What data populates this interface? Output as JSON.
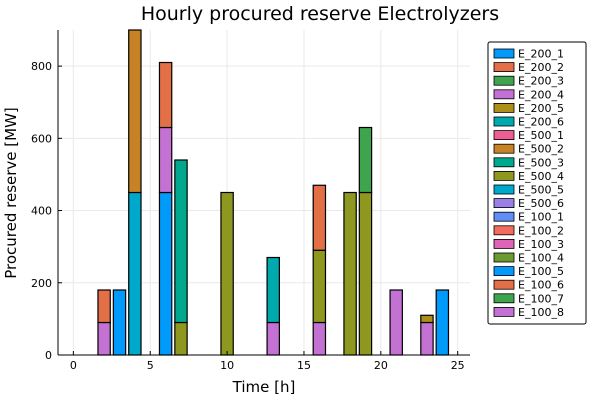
{
  "chart_data": {
    "type": "bar",
    "stacked": true,
    "title": "Hourly procured reserve Electrolyzers",
    "xlabel": "Time [h]",
    "ylabel": "Procured reserve [MW]",
    "xlim": [
      -1,
      25.8
    ],
    "ylim": [
      0,
      900
    ],
    "xticks": [
      0,
      5,
      10,
      15,
      20,
      25
    ],
    "yticks": [
      0,
      200,
      400,
      600,
      800
    ],
    "grid": true,
    "legend_position": "outer-right",
    "series": [
      {
        "name": "E_200_1",
        "color": "#009AFA",
        "points": []
      },
      {
        "name": "E_200_2",
        "color": "#E36F47",
        "points": []
      },
      {
        "name": "E_200_3",
        "color": "#3EA44E",
        "points": []
      },
      {
        "name": "E_200_4",
        "color": "#C371D2",
        "points": []
      },
      {
        "name": "E_200_5",
        "color": "#AC8E18",
        "points": []
      },
      {
        "name": "E_200_6",
        "color": "#00A9AD",
        "points": []
      },
      {
        "name": "E_500_1",
        "color": "#ED5E93",
        "points": []
      },
      {
        "name": "E_500_2",
        "color": "#C68225",
        "points": []
      },
      {
        "name": "E_500_3",
        "color": "#00A98D",
        "points": []
      },
      {
        "name": "E_500_4",
        "color": "#8E971E",
        "points": []
      },
      {
        "name": "E_500_5",
        "color": "#00A8CB",
        "points": []
      },
      {
        "name": "E_500_6",
        "color": "#9B7FE9",
        "points": []
      },
      {
        "name": "E_100_1",
        "color": "#618DF6",
        "points": []
      },
      {
        "name": "E_100_2",
        "color": "#F16C5F",
        "points": []
      },
      {
        "name": "E_100_3",
        "color": "#DD64B6",
        "points": []
      },
      {
        "name": "E_100_4",
        "color": "#6B9A32",
        "points": []
      },
      {
        "name": "E_100_5",
        "color": "#009AFA",
        "points": []
      },
      {
        "name": "E_100_6",
        "color": "#E36F47",
        "points": []
      },
      {
        "name": "E_100_7",
        "color": "#3EA44E",
        "points": []
      },
      {
        "name": "E_100_8",
        "color": "#C371D2",
        "points": []
      }
    ],
    "bars": [
      {
        "x": 2,
        "segments": [
          {
            "series": "E_100_8",
            "value": 90
          },
          {
            "series": "E_100_6",
            "value": 90
          }
        ]
      },
      {
        "x": 3,
        "segments": [
          {
            "series": "E_100_5",
            "value": 180
          }
        ]
      },
      {
        "x": 4,
        "segments": [
          {
            "series": "E_500_5",
            "value": 450
          },
          {
            "series": "E_500_2",
            "value": 450
          }
        ]
      },
      {
        "x": 6,
        "segments": [
          {
            "series": "E_100_5",
            "value": 450
          },
          {
            "series": "E_100_8",
            "value": 180
          },
          {
            "series": "E_100_6",
            "value": 180
          }
        ]
      },
      {
        "x": 7,
        "segments": [
          {
            "series": "E_500_4",
            "value": 90
          },
          {
            "series": "E_500_3",
            "value": 450
          }
        ]
      },
      {
        "x": 10,
        "segments": [
          {
            "series": "E_500_4",
            "value": 450
          }
        ]
      },
      {
        "x": 13,
        "segments": [
          {
            "series": "E_100_8",
            "value": 90
          },
          {
            "series": "E_200_6",
            "value": 180
          }
        ]
      },
      {
        "x": 16,
        "segments": [
          {
            "series": "E_100_8",
            "value": 90
          },
          {
            "series": "E_500_4",
            "value": 200
          },
          {
            "series": "E_100_6",
            "value": 180
          }
        ]
      },
      {
        "x": 18,
        "segments": [
          {
            "series": "E_500_4",
            "value": 450
          }
        ]
      },
      {
        "x": 19,
        "segments": [
          {
            "series": "E_500_4",
            "value": 450
          },
          {
            "series": "E_100_7",
            "value": 180
          }
        ]
      },
      {
        "x": 21,
        "segments": [
          {
            "series": "E_100_8",
            "value": 180
          }
        ]
      },
      {
        "x": 23,
        "segments": [
          {
            "series": "E_100_8",
            "value": 90
          },
          {
            "series": "E_200_5",
            "value": 20
          }
        ]
      },
      {
        "x": 24,
        "segments": [
          {
            "series": "E_100_5",
            "value": 180
          }
        ]
      }
    ]
  }
}
